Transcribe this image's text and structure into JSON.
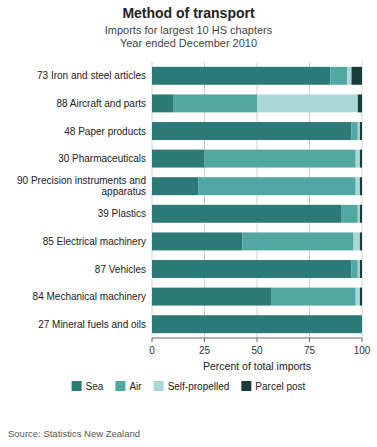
{
  "chart_data": {
    "type": "bar",
    "orientation": "horizontal",
    "stacked": true,
    "title": "Method of transport",
    "subtitle": [
      "Imports for largest 10 HS chapters",
      "Year ended December 2010"
    ],
    "x_label": "Percent of total imports",
    "annotations": [
      "Source: Statistics New Zealand"
    ],
    "categories": [
      "73 Iron and steel articles",
      "88 Aircraft and parts",
      "48 Paper products",
      "30 Pharmaceuticals",
      "90 Precision instruments and\napparatus",
      "39 Plastics",
      "85 Electrical machinery",
      "87 Vehicles",
      "84 Mechanical machinery",
      "27 Mineral fuels and oils"
    ],
    "series": [
      {
        "name": "Sea",
        "color": "#2b7a78",
        "values": [
          85,
          10,
          95,
          25,
          22,
          90,
          43,
          95,
          57,
          100
        ]
      },
      {
        "name": "Air",
        "color": "#52a8a0",
        "values": [
          8,
          40,
          3,
          72,
          75,
          8,
          53,
          3,
          40,
          0
        ]
      },
      {
        "name": "Self-propelled",
        "color": "#a8d8d8",
        "values": [
          2,
          48,
          1,
          2,
          2,
          1,
          3,
          1,
          2,
          0
        ]
      },
      {
        "name": "Parcel post",
        "color": "#1c3c3c",
        "values": [
          5,
          2,
          1,
          1,
          1,
          1,
          1,
          1,
          1,
          0
        ]
      }
    ],
    "xlim": [
      0,
      100
    ],
    "xticks": [
      0,
      25,
      50,
      75,
      100
    ],
    "grid": true,
    "legend": "bottom"
  }
}
